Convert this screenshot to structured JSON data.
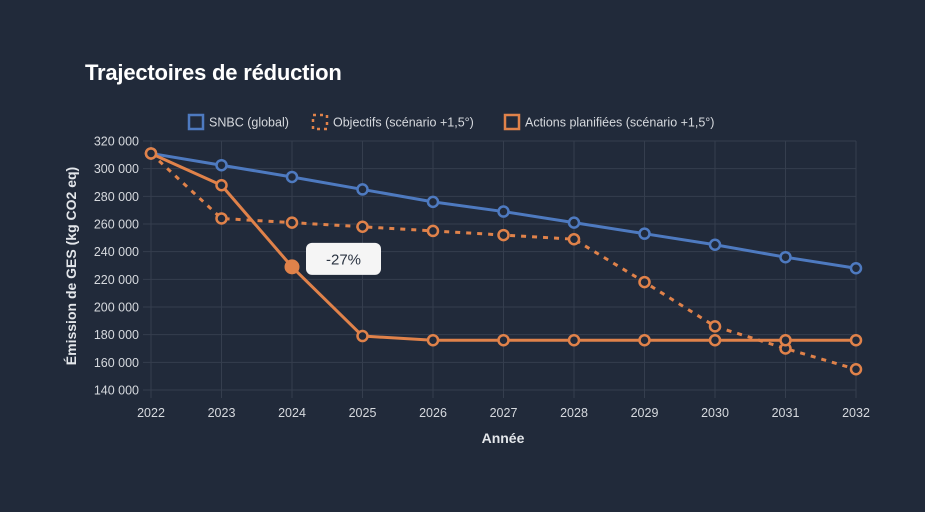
{
  "chart_data": {
    "type": "line",
    "title": "Trajectoires de réduction",
    "xlabel": "Année",
    "ylabel": "Émission de GES (kg CO2 eq)",
    "x": [
      "2022",
      "2023",
      "2024",
      "2025",
      "2026",
      "2027",
      "2028",
      "2029",
      "2030",
      "2031",
      "2032"
    ],
    "ylim": [
      140000,
      320000
    ],
    "yticks": [
      140000,
      160000,
      180000,
      200000,
      220000,
      240000,
      260000,
      280000,
      300000,
      320000
    ],
    "ytick_labels": [
      "140 000",
      "160 000",
      "180 000",
      "200 000",
      "220 000",
      "240 000",
      "260 000",
      "280 000",
      "300 000",
      "320 000"
    ],
    "grid": true,
    "legend_position": "top-center",
    "series": [
      {
        "name": "SNBC (global)",
        "color": "#4e7ac0",
        "style": "solid",
        "values": [
          311000,
          302500,
          294000,
          285000,
          276000,
          269000,
          261000,
          253000,
          245000,
          236000,
          228000
        ]
      },
      {
        "name": "Objectifs (scénario +1,5°)",
        "color": "#e0824a",
        "style": "dotted",
        "values": [
          311000,
          264000,
          261000,
          258000,
          255000,
          252000,
          249000,
          218000,
          186000,
          170000,
          155000
        ]
      },
      {
        "name": "Actions planifiées (scénario +1,5°)",
        "color": "#e0824a",
        "style": "solid",
        "values": [
          311000,
          288000,
          229000,
          179000,
          176000,
          176000,
          176000,
          176000,
          176000,
          176000,
          176000
        ]
      }
    ],
    "annotations": [
      {
        "series": "Actions planifiées (scénario +1,5°)",
        "x": "2024",
        "text": "-27%",
        "highlighted_point": true
      }
    ]
  }
}
